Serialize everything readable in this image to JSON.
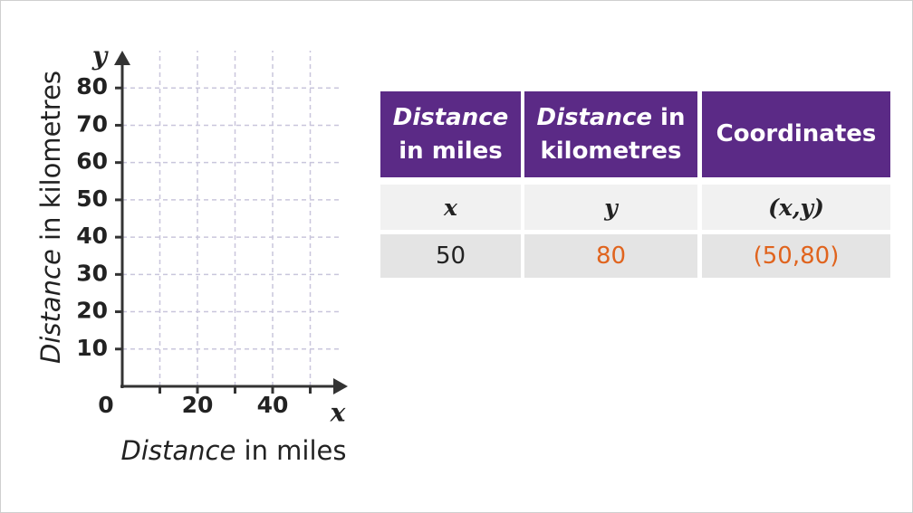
{
  "chart_data": {
    "type": "axes",
    "x_label": [
      "Distance",
      " in miles"
    ],
    "y_label": [
      "Distance",
      " in kilometres"
    ],
    "x_symbol": "x",
    "y_symbol": "y",
    "xlim": [
      0,
      60
    ],
    "ylim": [
      0,
      90
    ],
    "xticks": [
      0,
      20,
      40
    ],
    "x_minor_ticks": [
      10,
      30,
      50
    ],
    "yticks": [
      10,
      20,
      30,
      40,
      50,
      60,
      70,
      80
    ],
    "grid": true
  },
  "table": {
    "header": [
      [
        "Distance",
        " in miles"
      ],
      [
        "Distance",
        " in kilometres"
      ],
      [
        "",
        "Coordinates"
      ]
    ],
    "rows": [
      [
        "x",
        "y",
        "(x,y)"
      ],
      [
        "50",
        "80",
        "(50,80)"
      ]
    ]
  }
}
